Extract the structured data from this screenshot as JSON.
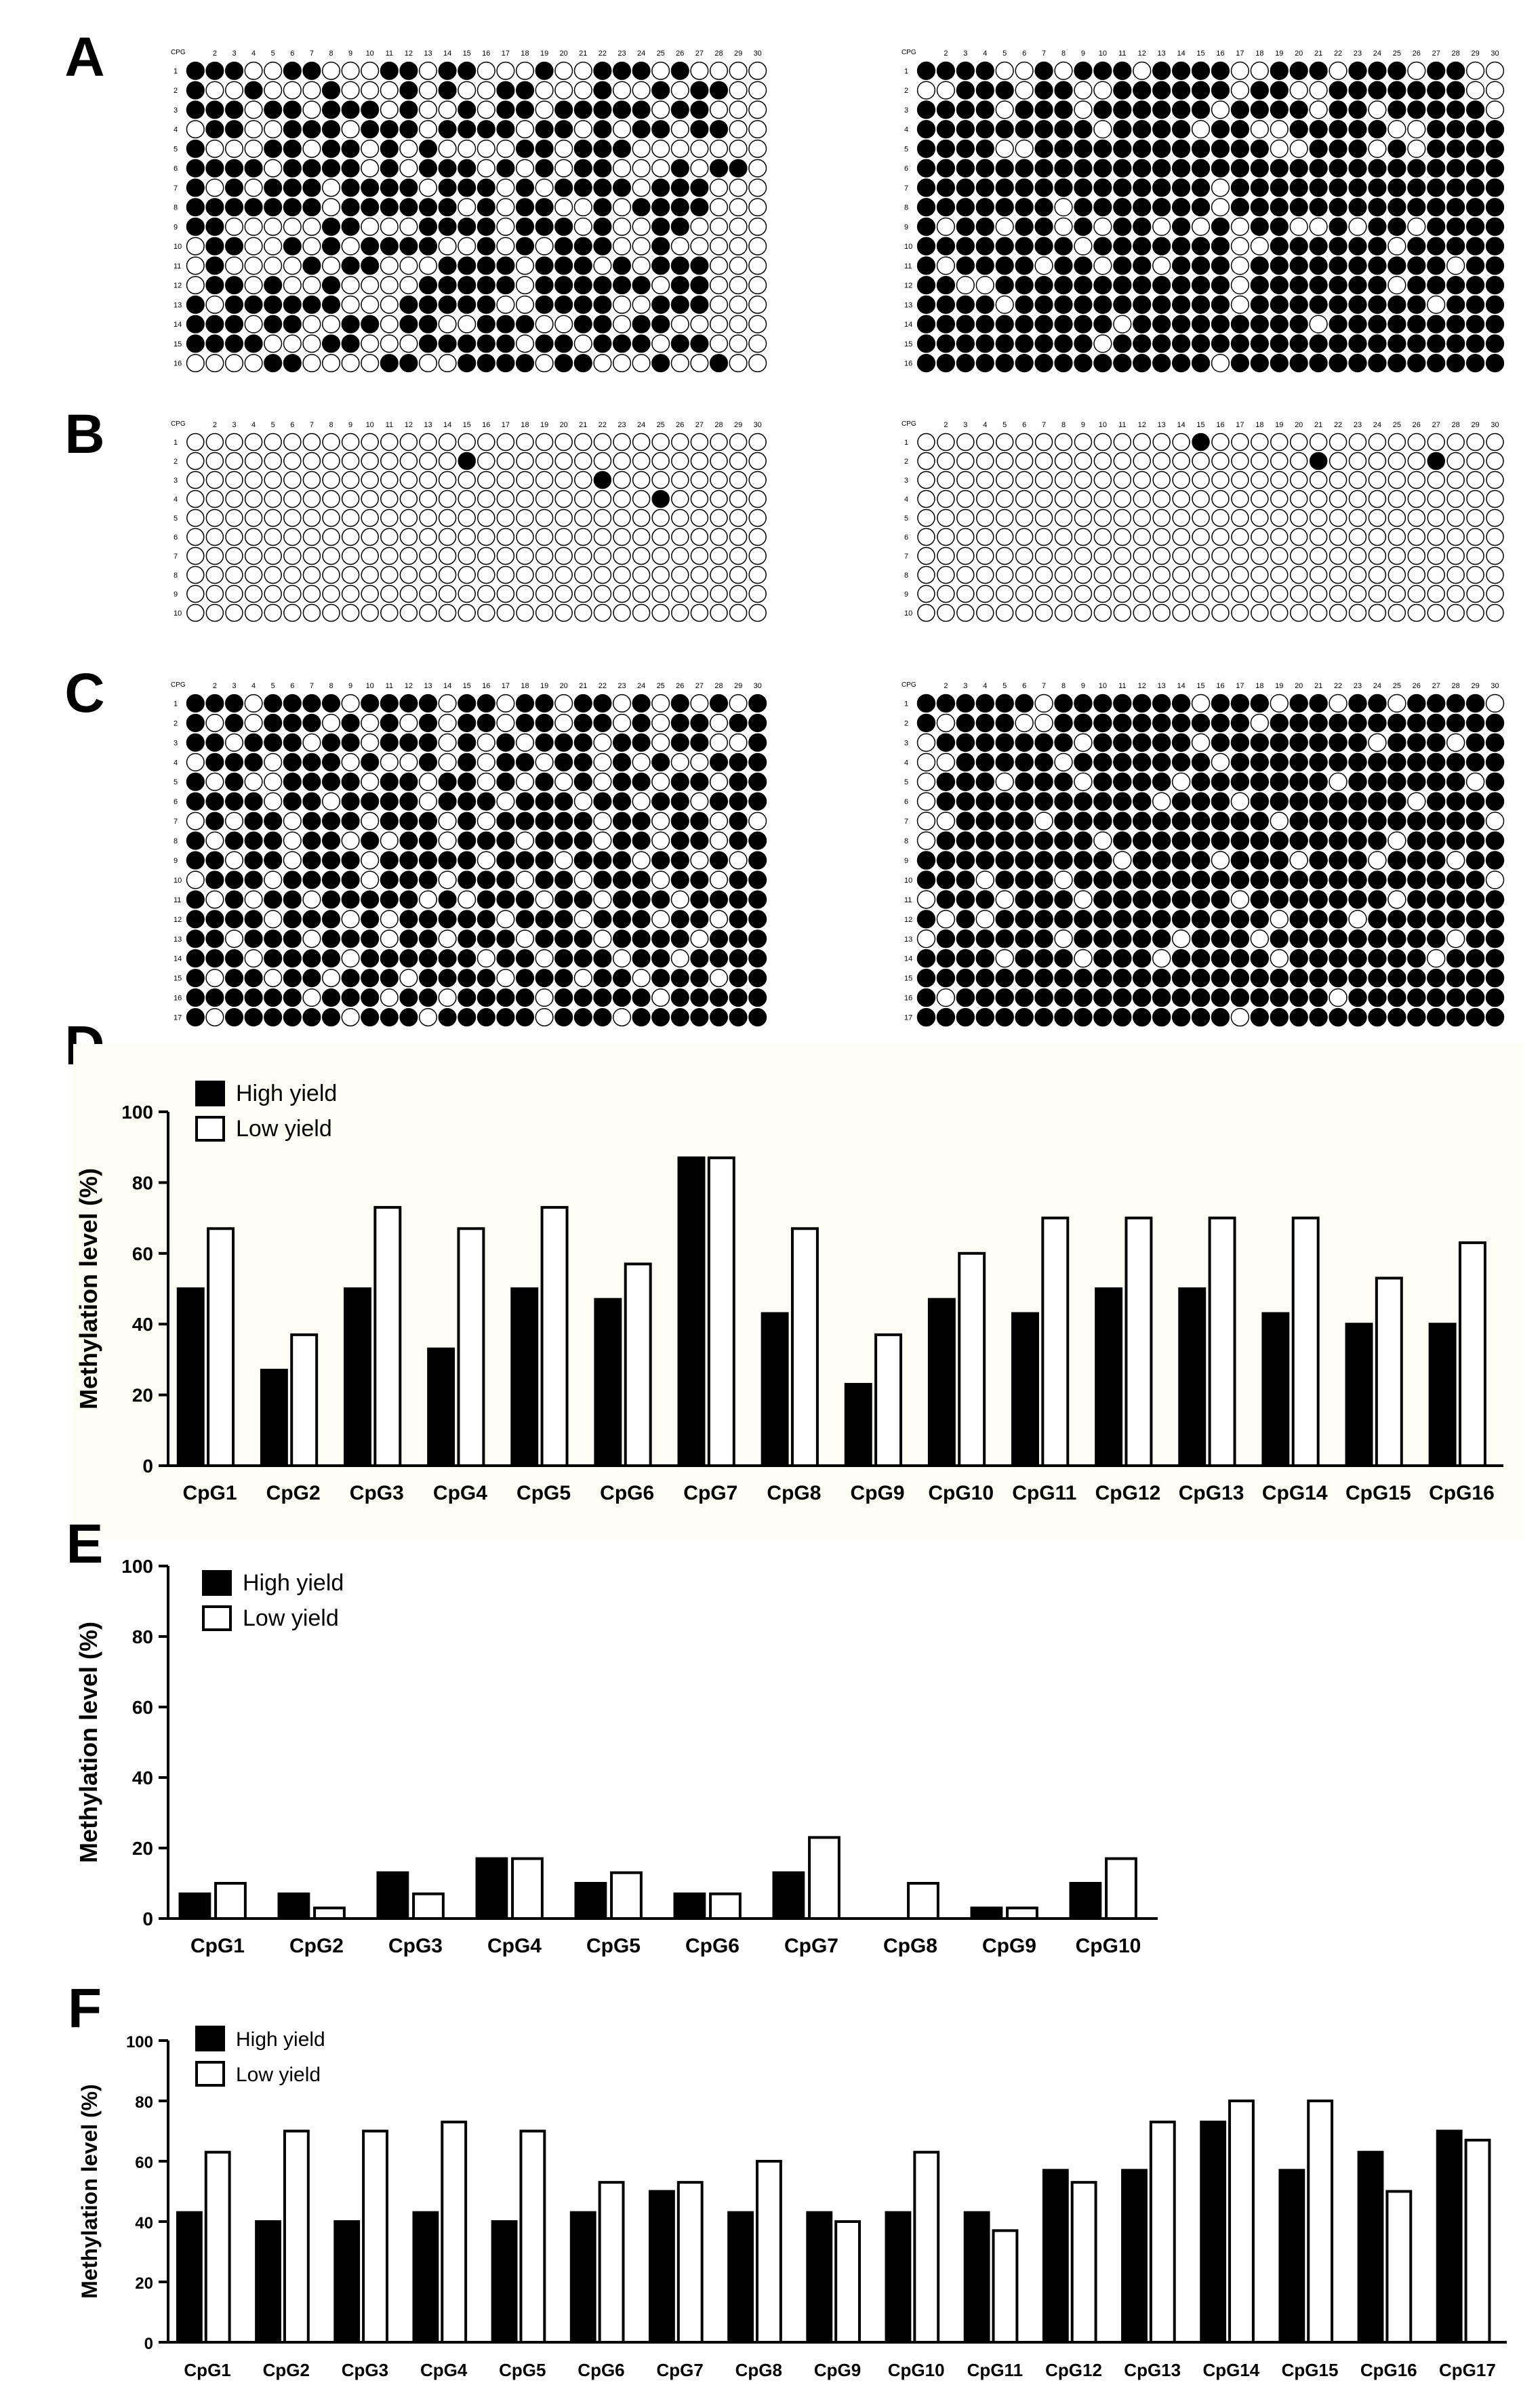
{
  "colors": {
    "methylated": "#000000",
    "unmethylated": "#ffffff",
    "outline": "#000000",
    "chart_bg": "#fdfdf5"
  },
  "chart_data": [
    {
      "panel": "A",
      "type": "heatmap",
      "xlabel": "CPG",
      "columns": 30,
      "rows": 16,
      "grids": [
        {
          "cells": [
            "111001100011011000100111010000",
            "100100010001010011000100101100",
            "111011011101001011011111011000",
            "011001110111011110110101101100",
            "100011011010100001101110000000",
            "111101111010111010101100010110",
            "101011101111011101011110111000",
            "111111101111110101100101111000",
            "110000011000111101110100110000",
            "011001010111100101011100100000",
            "010000101100011110111010111000",
            "011010010000111110111111011000",
            "101111110001111100111100111000",
            "111011001101100111001101100000",
            "111100011000111110110111011000",
            "000011000011001111011000100100"
          ]
        },
        {
          "cells": [
            "111100101110111100111011101100",
            "001110110011111101100111111100",
            "111101110111111011110110111110",
            "111111111011110110011111001111",
            "111100111111111111001110101111",
            "111111111111111111111111111111",
            "111111111111111011111111111111",
            "111111101111111011111111111111",
            "101101101011010101100101101111",
            "111111110111111100111111011111",
            "101111011011011101111111111011",
            "110011111111111101111111011111",
            "111101111111111101111111110111",
            "111111111101111111110111111111",
            "111111111011111111111111111111",
            "111111111111111011111111111111"
          ]
        }
      ]
    },
    {
      "panel": "B",
      "type": "heatmap",
      "xlabel": "CPG",
      "columns": 30,
      "rows": 10,
      "grids": [
        {
          "cells": [
            "000000000000000000000000000000",
            "000000000000001000000000000000",
            "000000000000000000000100000000",
            "000000000000000000000000100000",
            "000000000000000000000000000000",
            "000000000000000000000000000000",
            "000000000000000000000000000000",
            "000000000000000000000000000000",
            "000000000000000000000000000000",
            "000000000000000000000000000000"
          ]
        },
        {
          "cells": [
            "000000000000001000000000000000",
            "000000000000000000001000001000",
            "000000000000000000000000000000",
            "000000000000000000000000000000",
            "000000000000000000000000000000",
            "000000000000000000000000000000",
            "000000000000000000000000000000",
            "000000000000000000000000000000",
            "000000000000000000000000000000",
            "000000000000000000000000000000"
          ]
        }
      ]
    },
    {
      "panel": "C",
      "type": "heatmap",
      "xlabel": "CPG",
      "columns": 30,
      "rows": 17,
      "grids": [
        {
          "cells": [
            "111011110111101101101101010101",
            "101011101010101101101101011011",
            "110111011011101010111011011001",
            "011101110100101011011010100111",
            "101001111011011010101011011011",
            "111101101111011101110110110111",
            "010110111011101011111011011010",
            "101110110101101110111011011011",
            "110110111011111011101110110101",
            "011101111011101110110111011011",
            "101011011111010111011011101111",
            "111101110101111101110111011011",
            "110111011101101110111011110111",
            "111011110111111011011101101111",
            "101101101110111101110110111011",
            "111111011101101111011111011111",
            "101111110111011111011101111111"
          ]
        },
        {
          "cells": [
            "111111011111110111011011011110",
            "101110011111111110111111111111",
            "011111110111110111111110111011",
            "001111101111111011111111111111",
            "011101110111101111111011111101",
            "011111111111011101111111101111",
            "001111011111111111011111111110",
            "011111111011111111111111011111",
            "111111111101111011101110111011",
            "111011101111111111111111111110",
            "011101110111111101111111011111",
            "101011111111111111011101111111",
            "011111101111101110111111111011",
            "111101110111011111011111110111",
            "111111111111111111111111111111",
            "101111111111111111111011111111",
            "111111111111111101111111111111"
          ]
        }
      ]
    },
    {
      "panel": "D",
      "type": "bar",
      "categories": [
        "CpG1",
        "CpG2",
        "CpG3",
        "CpG4",
        "CpG5",
        "CpG6",
        "CpG7",
        "CpG8",
        "CpG9",
        "CpG10",
        "CpG11",
        "CpG12",
        "CpG13",
        "CpG14",
        "CpG15",
        "CpG16"
      ],
      "series": [
        {
          "name": "High yield",
          "values": [
            50,
            27,
            50,
            33,
            50,
            47,
            87,
            43,
            23,
            47,
            43,
            50,
            50,
            43,
            40,
            40
          ]
        },
        {
          "name": "Low yield",
          "values": [
            67,
            37,
            73,
            67,
            73,
            57,
            87,
            67,
            37,
            60,
            70,
            70,
            70,
            70,
            53,
            63
          ]
        }
      ],
      "ylabel": "Methylation level (%)",
      "ylim": [
        0,
        100
      ],
      "yticks": [
        0,
        20,
        40,
        60,
        80,
        100
      ],
      "legend": "top-left"
    },
    {
      "panel": "E",
      "type": "bar",
      "categories": [
        "CpG1",
        "CpG2",
        "CpG3",
        "CpG4",
        "CpG5",
        "CpG6",
        "CpG7",
        "CpG8",
        "CpG9",
        "CpG10"
      ],
      "series": [
        {
          "name": "High yield",
          "values": [
            7,
            7,
            13,
            17,
            10,
            7,
            13,
            0,
            3,
            10
          ]
        },
        {
          "name": "Low yield",
          "values": [
            10,
            3,
            7,
            17,
            13,
            7,
            23,
            10,
            3,
            17
          ]
        }
      ],
      "ylabel": "Methylation level (%)",
      "ylim": [
        0,
        100
      ],
      "yticks": [
        0,
        20,
        40,
        60,
        80,
        100
      ],
      "legend": "top-left"
    },
    {
      "panel": "F",
      "type": "bar",
      "categories": [
        "CpG1",
        "CpG2",
        "CpG3",
        "CpG4",
        "CpG5",
        "CpG6",
        "CpG7",
        "CpG8",
        "CpG9",
        "CpG10",
        "CpG11",
        "CpG12",
        "CpG13",
        "CpG14",
        "CpG15",
        "CpG16",
        "CpG17"
      ],
      "series": [
        {
          "name": "High yield",
          "values": [
            43,
            40,
            40,
            43,
            40,
            43,
            50,
            43,
            43,
            43,
            43,
            57,
            57,
            73,
            57,
            63,
            70
          ]
        },
        {
          "name": "Low yield",
          "values": [
            63,
            70,
            70,
            73,
            70,
            53,
            53,
            60,
            40,
            63,
            37,
            53,
            73,
            80,
            80,
            50,
            67
          ]
        }
      ],
      "ylabel": "Methylation level (%)",
      "ylim": [
        0,
        100
      ],
      "yticks": [
        0,
        20,
        40,
        60,
        80,
        100
      ],
      "legend": "top-left"
    }
  ]
}
